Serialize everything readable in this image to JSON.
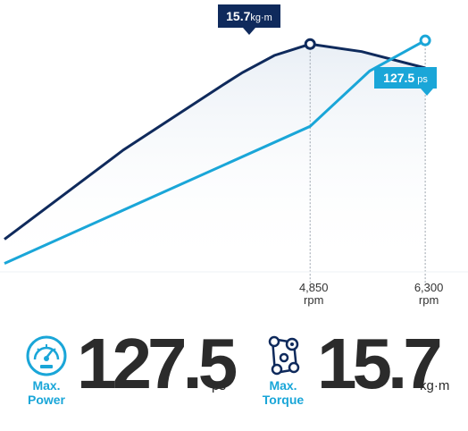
{
  "chart_data": {
    "type": "line",
    "xlabel": "rpm",
    "xlim": [
      1000,
      6400
    ],
    "highlight_ticks": [
      {
        "value": "4,850",
        "unit": "rpm"
      },
      {
        "value": "6,300",
        "unit": "rpm"
      }
    ],
    "series": [
      {
        "name": "torque",
        "color": "#0f2a5c",
        "x": [
          1000,
          2500,
          3750,
          4000,
          4400,
          4850,
          5500,
          6300
        ],
        "y": [
          12.6,
          14.02,
          15.05,
          15.25,
          15.52,
          15.7,
          15.58,
          15.32
        ],
        "ylim": [
          11.5,
          16.4
        ],
        "peak": {
          "x": 4850,
          "label_value": "15.7",
          "label_unit": "kg·m"
        }
      },
      {
        "name": "power",
        "color": "#1aa6d8",
        "x": [
          1000,
          4850,
          5600,
          6300
        ],
        "y": [
          36.4,
          92.4,
          115.0,
          127.5
        ],
        "ylim": [
          18,
          144
        ],
        "peak": {
          "x": 6300,
          "label_value": "127.5",
          "label_unit": "ps"
        }
      }
    ]
  },
  "stats": [
    {
      "label_line1": "Max.",
      "label_line2": "Power",
      "value": "127.5",
      "unit": "ps",
      "icon": "speedometer-icon"
    },
    {
      "label_line1": "Max.",
      "label_line2": "Torque",
      "value": "15.7",
      "unit": "kg·m",
      "icon": "engine-belt-icon"
    }
  ],
  "colors": {
    "torque": "#0f2a5c",
    "power": "#1aa6d8",
    "fill": "#e6edf4",
    "text": "#2b2b2b"
  }
}
